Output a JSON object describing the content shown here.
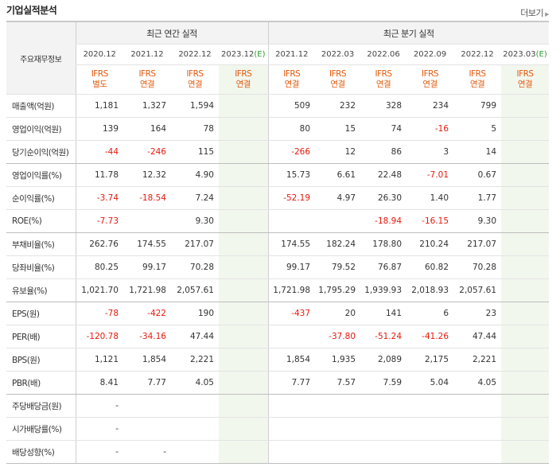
{
  "header": {
    "title": "기업실적분석",
    "more_label": "더보기"
  },
  "table": {
    "row_header": "주요재무정보",
    "group_annual": "최근 연간 실적",
    "group_quarter": "최근 분기 실적",
    "columns": [
      {
        "period": "2020.12",
        "est": "",
        "std": "IFRS",
        "type": "별도"
      },
      {
        "period": "2021.12",
        "est": "",
        "std": "IFRS",
        "type": "연결"
      },
      {
        "period": "2022.12",
        "est": "",
        "std": "IFRS",
        "type": "연결"
      },
      {
        "period": "2023.12",
        "est": "(E)",
        "std": "IFRS",
        "type": "연결"
      },
      {
        "period": "2021.12",
        "est": "",
        "std": "IFRS",
        "type": "연결"
      },
      {
        "period": "2022.03",
        "est": "",
        "std": "IFRS",
        "type": "연결"
      },
      {
        "period": "2022.06",
        "est": "",
        "std": "IFRS",
        "type": "연결"
      },
      {
        "period": "2022.09",
        "est": "",
        "std": "IFRS",
        "type": "연결"
      },
      {
        "period": "2022.12",
        "est": "",
        "std": "IFRS",
        "type": "연결"
      },
      {
        "period": "2023.03",
        "est": "(E)",
        "std": "IFRS",
        "type": "연결"
      }
    ],
    "rows": [
      {
        "label": "매출액(억원)",
        "values": [
          "1,181",
          "1,327",
          "1,594",
          "",
          "509",
          "232",
          "328",
          "234",
          "799",
          ""
        ]
      },
      {
        "label": "영업이익(억원)",
        "values": [
          "139",
          "164",
          "78",
          "",
          "80",
          "15",
          "74",
          "-16",
          "5",
          ""
        ]
      },
      {
        "label": "당기순이익(억원)",
        "values": [
          "-44",
          "-246",
          "115",
          "",
          "-266",
          "12",
          "86",
          "3",
          "14",
          ""
        ]
      },
      {
        "label": "영업이익률(%)",
        "values": [
          "11.78",
          "12.32",
          "4.90",
          "",
          "15.73",
          "6.61",
          "22.48",
          "-7.01",
          "0.67",
          ""
        ]
      },
      {
        "label": "순이익률(%)",
        "values": [
          "-3.74",
          "-18.54",
          "7.24",
          "",
          "-52.19",
          "4.97",
          "26.30",
          "1.40",
          "1.77",
          ""
        ]
      },
      {
        "label": "ROE(%)",
        "values": [
          "-7.73",
          "",
          "9.30",
          "",
          "",
          "",
          "-18.94",
          "-16.15",
          "9.30",
          ""
        ]
      },
      {
        "label": "부채비율(%)",
        "values": [
          "262.76",
          "174.55",
          "217.07",
          "",
          "174.55",
          "182.24",
          "178.80",
          "210.24",
          "217.07",
          ""
        ]
      },
      {
        "label": "당좌비율(%)",
        "values": [
          "80.25",
          "99.17",
          "70.28",
          "",
          "99.17",
          "79.52",
          "76.87",
          "60.82",
          "70.28",
          ""
        ]
      },
      {
        "label": "유보율(%)",
        "values": [
          "1,021.70",
          "1,721.98",
          "2,057.61",
          "",
          "1,721.98",
          "1,795.29",
          "1,939.93",
          "2,018.93",
          "2,057.61",
          ""
        ]
      },
      {
        "label": "EPS(원)",
        "values": [
          "-78",
          "-422",
          "190",
          "",
          "-437",
          "20",
          "141",
          "6",
          "23",
          ""
        ]
      },
      {
        "label": "PER(배)",
        "values": [
          "-120.78",
          "-34.16",
          "47.44",
          "",
          "",
          "-37.80",
          "-51.24",
          "-41.26",
          "47.44",
          ""
        ]
      },
      {
        "label": "BPS(원)",
        "values": [
          "1,121",
          "1,854",
          "2,221",
          "",
          "1,854",
          "1,935",
          "2,089",
          "2,175",
          "2,221",
          ""
        ]
      },
      {
        "label": "PBR(배)",
        "values": [
          "8.41",
          "7.77",
          "4.05",
          "",
          "7.77",
          "7.57",
          "7.59",
          "5.04",
          "4.05",
          ""
        ]
      },
      {
        "label": "주당배당금(원)",
        "values": [
          "-",
          "",
          "",
          "",
          "",
          "",
          "",
          "",
          "",
          ""
        ]
      },
      {
        "label": "시가배당률(%)",
        "values": [
          "-",
          "",
          "",
          "",
          "",
          "",
          "",
          "",
          "",
          ""
        ]
      },
      {
        "label": "배당성향(%)",
        "values": [
          "-",
          "-",
          "",
          "",
          "",
          "",
          "",
          "",
          "",
          ""
        ]
      }
    ]
  }
}
